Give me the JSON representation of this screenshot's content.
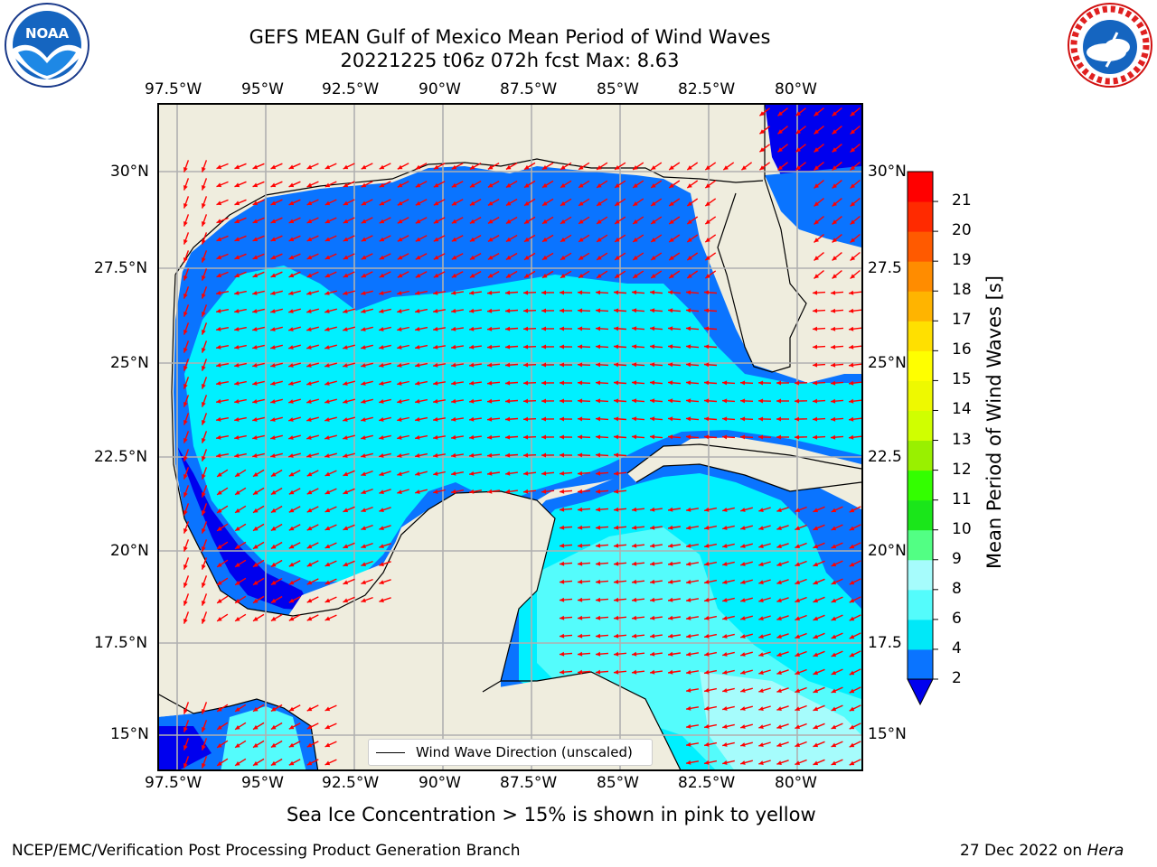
{
  "title": {
    "line1": "GEFS MEAN Gulf of Mexico Mean Period of Wind Waves",
    "line2": "20221225 t06z 072h fcst   Max: 8.63"
  },
  "map": {
    "lon_ticks": [
      "97.5°W",
      "95°W",
      "92.5°W",
      "90°W",
      "87.5°W",
      "85°W",
      "82.5°W",
      "80°W"
    ],
    "lat_ticks_left": [
      "30°N",
      "27.5°N",
      "25°N",
      "22.5°N",
      "20°N",
      "17.5°N",
      "15°N"
    ],
    "lat_ticks_right": [
      "30°N",
      "27.5",
      "25°N",
      "22.5",
      "20°N",
      "17.5",
      "15°N"
    ],
    "legend_label": "Wind Wave Direction (unscaled)",
    "land_color": "#efedde",
    "arrow_color": "#ff0000"
  },
  "colorbar": {
    "label": "Mean Period of Wind Waves [s]",
    "ticks": [
      "2",
      "4",
      "6",
      "8",
      "9",
      "10",
      "11",
      "12",
      "13",
      "14",
      "15",
      "16",
      "17",
      "18",
      "19",
      "20",
      "21"
    ],
    "colors": [
      "#0a74ff",
      "#00e8f8",
      "#54fcfc",
      "#a6fcfc",
      "#52ff84",
      "#1ae61a",
      "#33ff00",
      "#99f000",
      "#d0ff00",
      "#eef900",
      "#ffff00",
      "#ffe000",
      "#ffb400",
      "#ff8c00",
      "#ff5a00",
      "#ff2a00",
      "#ff0000"
    ],
    "under_color": "#0000ee"
  },
  "caption": "Sea Ice Concentration > 15% is shown in pink to yellow",
  "footer": {
    "left": "NCEP/EMC/Verification Post Processing Product Generation Branch",
    "date": "27 Dec 2022 on",
    "host": "Hera"
  }
}
